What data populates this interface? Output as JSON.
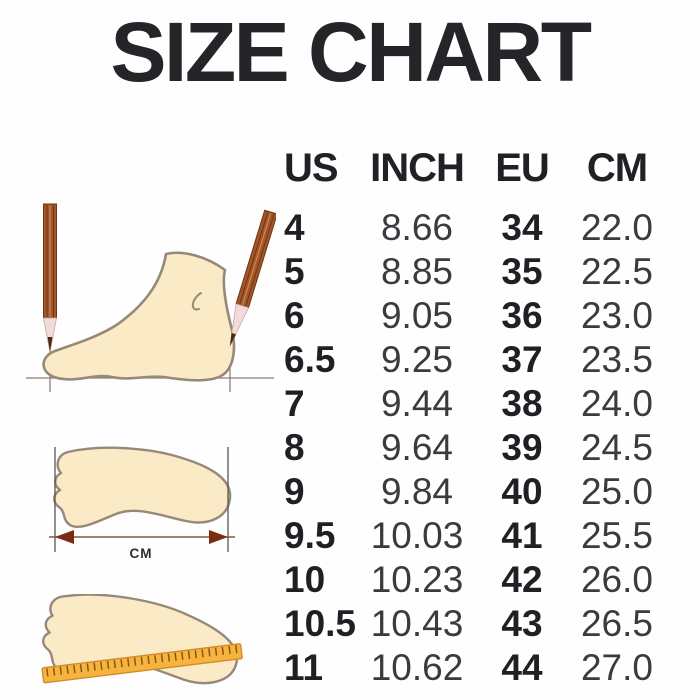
{
  "title": "SIZE CHART",
  "chart_data": {
    "type": "table",
    "title": "SIZE CHART",
    "headers": [
      "US",
      "INCH",
      "EU",
      "CM"
    ],
    "rows": [
      [
        "4",
        "8.66",
        "34",
        "22.0"
      ],
      [
        "5",
        "8.85",
        "35",
        "22.5"
      ],
      [
        "6",
        "9.05",
        "36",
        "23.0"
      ],
      [
        "6.5",
        "9.25",
        "37",
        "23.5"
      ],
      [
        "7",
        "9.44",
        "38",
        "24.0"
      ],
      [
        "8",
        "9.64",
        "39",
        "24.5"
      ],
      [
        "9",
        "9.84",
        "40",
        "25.0"
      ],
      [
        "9.5",
        "10.03",
        "41",
        "25.5"
      ],
      [
        "10",
        "10.23",
        "42",
        "26.0"
      ],
      [
        "10.5",
        "10.43",
        "43",
        "26.5"
      ],
      [
        "11",
        "10.62",
        "44",
        "27.0"
      ]
    ],
    "layout_hints": {
      "bold_columns": [
        "US",
        "EU"
      ],
      "regular_columns": [
        "INCH",
        "CM"
      ]
    }
  },
  "illustrations": {
    "cm_arrow_label": "CM",
    "icons": [
      "foot-side-pencil-measure-icon",
      "footprint-length-arrow-icon",
      "footprint-ruler-icon"
    ]
  },
  "colors": {
    "text_dark": "#242529",
    "text_light": "#3a3b3f",
    "foot_fill": "#fbeac6",
    "foot_outline": "#97897a",
    "pencil_brown": "#a3562a",
    "pencil_tip": "#f2dbdb",
    "ruler_orange": "#f6b43e",
    "arrowhead_maroon": "#7c2c12"
  }
}
